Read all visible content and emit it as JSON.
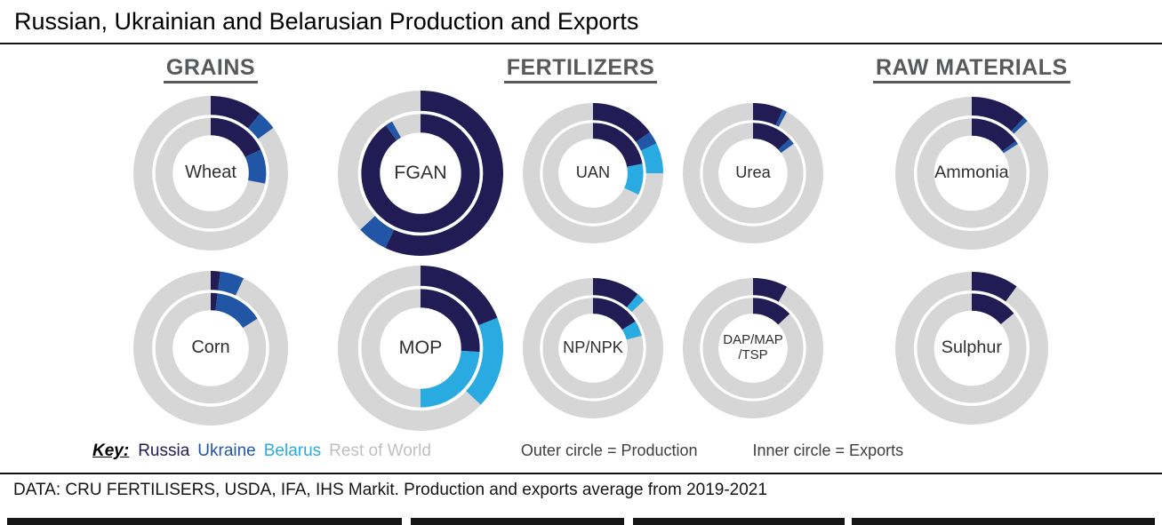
{
  "title": "Russian, Ukrainian and Belarusian Production and Exports",
  "legend": {
    "key_label": "Key:",
    "entries": [
      {
        "label": "Russia",
        "color": "#211c54"
      },
      {
        "label": "Ukraine",
        "color": "#2156a6"
      },
      {
        "label": "Belarus",
        "color": "#29abe2"
      },
      {
        "label": "Rest of World",
        "color": "#bfbfbf"
      }
    ],
    "outer_note": "Outer circle = Production",
    "inner_note": "Inner circle = Exports"
  },
  "footer": "DATA: CRU FERTILISERS, USDA, IFA, IHS Markit. Production and exports average from 2019-2021",
  "chart_data": {
    "type": "donut-nested",
    "ring_meaning": {
      "outer": "Production",
      "inner": "Exports"
    },
    "units": "% of world total (estimated from chart)",
    "remainder": "Rest of World",
    "colors": {
      "Russia": "#211c54",
      "Ukraine": "#2156a6",
      "Belarus": "#29abe2",
      "Rest of World": "#d6d6d6"
    },
    "groups": [
      {
        "label": "GRAINS",
        "columns": 1,
        "charts": [
          {
            "label_lines": [
              "Wheat"
            ],
            "size": 174,
            "production": [
              {
                "name": "Russia",
                "value": 11
              },
              {
                "name": "Ukraine",
                "value": 4
              }
            ],
            "exports": [
              {
                "name": "Russia",
                "value": 18
              },
              {
                "name": "Ukraine",
                "value": 10
              }
            ]
          },
          {
            "label_lines": [
              "Corn"
            ],
            "size": 174,
            "production": [
              {
                "name": "Russia",
                "value": 2
              },
              {
                "name": "Ukraine",
                "value": 5
              }
            ],
            "exports": [
              {
                "name": "Russia",
                "value": 2
              },
              {
                "name": "Ukraine",
                "value": 14
              }
            ]
          }
        ]
      },
      {
        "label": "FERTILIZERS",
        "columns": 3,
        "charts": [
          {
            "label_lines": [
              "FGAN"
            ],
            "size": 186,
            "production": [
              {
                "name": "Russia",
                "value": 57
              },
              {
                "name": "Ukraine",
                "value": 6
              }
            ],
            "exports": [
              {
                "name": "Russia",
                "value": 90
              },
              {
                "name": "Ukraine",
                "value": 2
              }
            ]
          },
          {
            "label_lines": [
              "UAN"
            ],
            "size": 158,
            "production": [
              {
                "name": "Russia",
                "value": 15
              },
              {
                "name": "Ukraine",
                "value": 3
              },
              {
                "name": "Belarus",
                "value": 7
              }
            ],
            "exports": [
              {
                "name": "Russia",
                "value": 22
              },
              {
                "name": "Belarus",
                "value": 10
              }
            ]
          },
          {
            "label_lines": [
              "Urea"
            ],
            "size": 158,
            "production": [
              {
                "name": "Russia",
                "value": 7
              },
              {
                "name": "Ukraine",
                "value": 1
              }
            ],
            "exports": [
              {
                "name": "Russia",
                "value": 13
              },
              {
                "name": "Ukraine",
                "value": 2
              }
            ]
          },
          {
            "label_lines": [
              "MOP"
            ],
            "size": 186,
            "production": [
              {
                "name": "Russia",
                "value": 19
              },
              {
                "name": "Belarus",
                "value": 18
              }
            ],
            "exports": [
              {
                "name": "Russia",
                "value": 26
              },
              {
                "name": "Belarus",
                "value": 24
              }
            ]
          },
          {
            "label_lines": [
              "NP/NPK"
            ],
            "size": 158,
            "production": [
              {
                "name": "Russia",
                "value": 11
              },
              {
                "name": "Belarus",
                "value": 2
              }
            ],
            "exports": [
              {
                "name": "Russia",
                "value": 16
              },
              {
                "name": "Belarus",
                "value": 5
              }
            ]
          },
          {
            "label_lines": [
              "DAP/MAP",
              "/TSP"
            ],
            "size": 158,
            "production": [
              {
                "name": "Russia",
                "value": 8
              }
            ],
            "exports": [
              {
                "name": "Russia",
                "value": 13
              }
            ]
          }
        ]
      },
      {
        "label": "RAW MATERIALS",
        "columns": 1,
        "charts": [
          {
            "label_lines": [
              "Ammonia"
            ],
            "size": 172,
            "production": [
              {
                "name": "Russia",
                "value": 12
              },
              {
                "name": "Ukraine",
                "value": 1
              }
            ],
            "exports": [
              {
                "name": "Russia",
                "value": 15
              },
              {
                "name": "Ukraine",
                "value": 1
              }
            ]
          },
          {
            "label_lines": [
              "Sulphur"
            ],
            "size": 172,
            "production": [
              {
                "name": "Russia",
                "value": 10
              }
            ],
            "exports": [
              {
                "name": "Russia",
                "value": 14
              }
            ]
          }
        ]
      }
    ]
  }
}
